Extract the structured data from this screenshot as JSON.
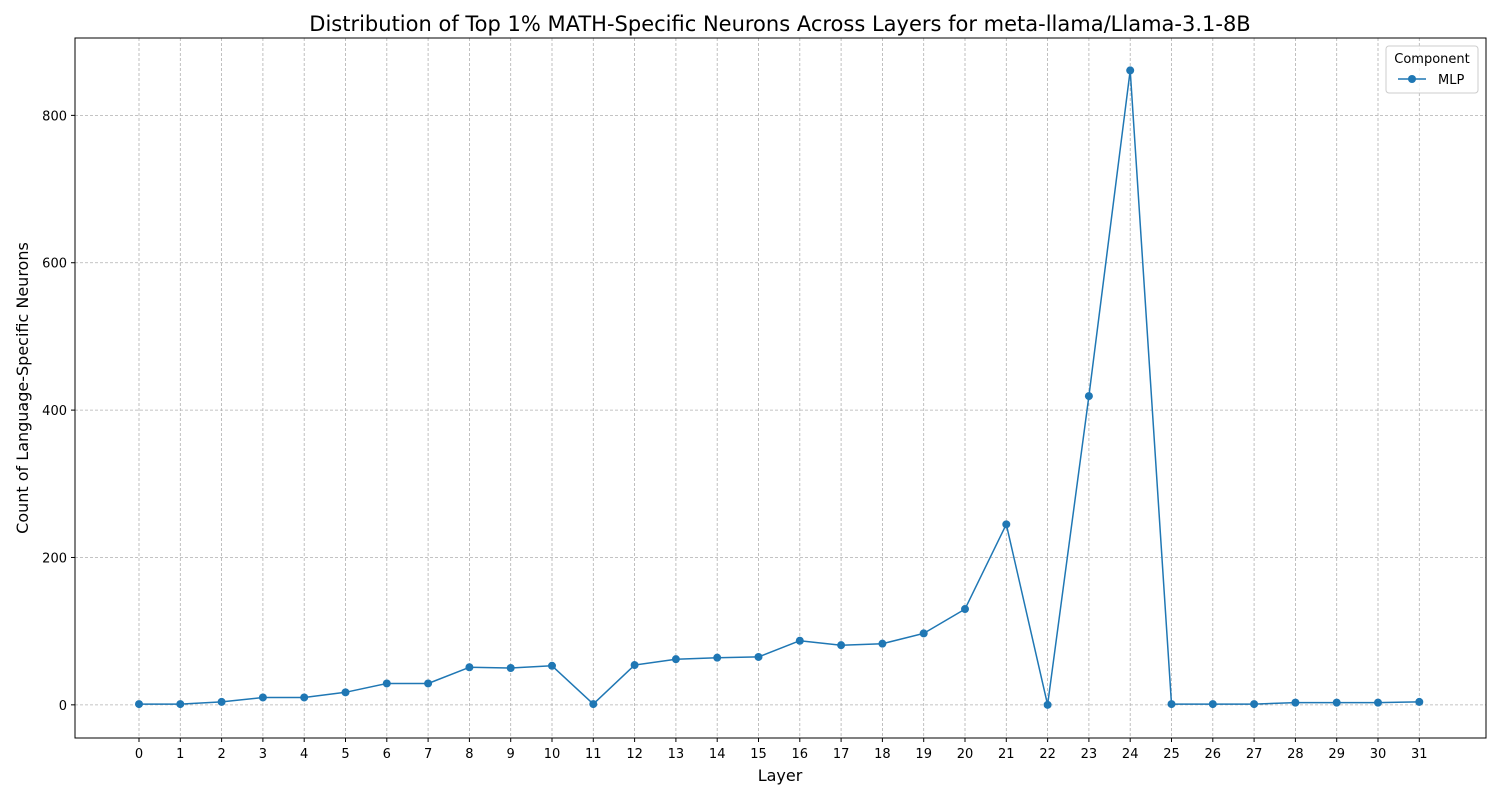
{
  "chart_data": {
    "type": "line",
    "title": "Distribution of Top 1% MATH-Specific Neurons Across Layers for meta-llama/Llama-3.1-8B",
    "xlabel": "Layer",
    "ylabel": "Count of Language-Specific Neurons",
    "x": [
      0,
      1,
      2,
      3,
      4,
      5,
      6,
      7,
      8,
      9,
      10,
      11,
      12,
      13,
      14,
      15,
      16,
      17,
      18,
      19,
      20,
      21,
      22,
      23,
      24,
      25,
      26,
      27,
      28,
      29,
      30,
      31
    ],
    "x_tick_labels": [
      "0",
      "1",
      "2",
      "3",
      "4",
      "5",
      "6",
      "7",
      "8",
      "9",
      "10",
      "11",
      "12",
      "13",
      "14",
      "15",
      "16",
      "17",
      "18",
      "19",
      "20",
      "21",
      "22",
      "23",
      "24",
      "25",
      "26",
      "27",
      "28",
      "29",
      "30",
      "31"
    ],
    "ylim": [
      -45,
      905
    ],
    "y_ticks": [
      0,
      200,
      400,
      600,
      800
    ],
    "y_tick_labels": [
      "0",
      "200",
      "400",
      "600",
      "800"
    ],
    "grid": true,
    "legend": {
      "title": "Component",
      "placement": "top-right"
    },
    "series": [
      {
        "name": "MLP",
        "color": "#1f77b4",
        "marker": "circle",
        "values": [
          1,
          1,
          4,
          10,
          10,
          17,
          29,
          29,
          51,
          50,
          53,
          1,
          54,
          62,
          64,
          65,
          87,
          81,
          83,
          97,
          130,
          245,
          0,
          419,
          861,
          1,
          1,
          1,
          3,
          3,
          3,
          4
        ]
      }
    ]
  }
}
